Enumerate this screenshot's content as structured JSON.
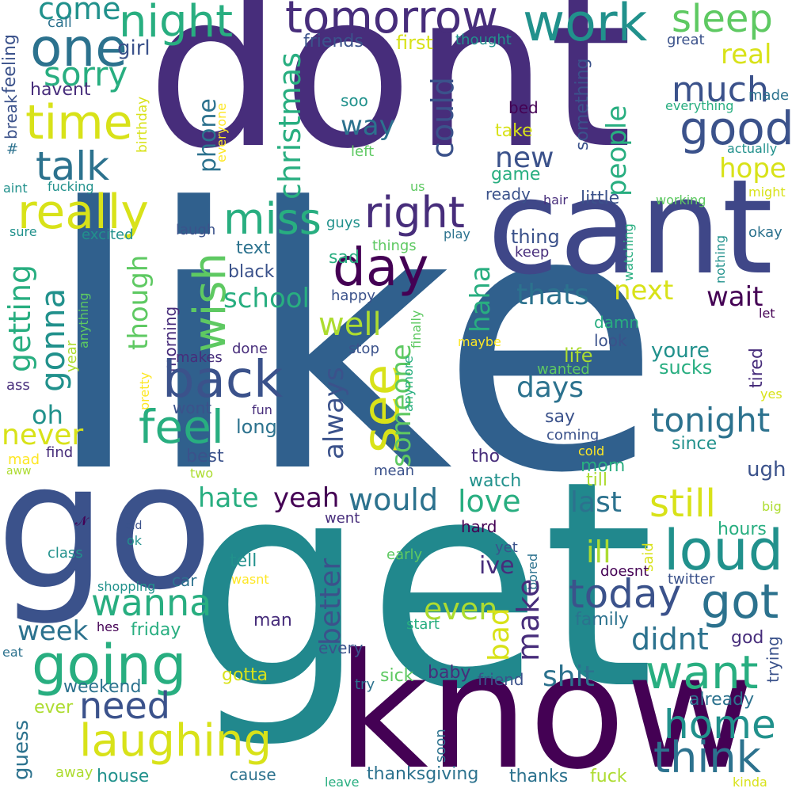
{
  "colors": {
    "background": "#ffffff",
    "palette": [
      "#440154",
      "#472d7b",
      "#3b528b",
      "#2c728e",
      "#21918c",
      "#28ae80",
      "#5ec962",
      "#addc30",
      "#d8e219",
      "#fde725"
    ]
  },
  "words": [
    {
      "text": "dont"
    },
    {
      "text": "like"
    },
    {
      "text": "get"
    },
    {
      "text": "cant"
    },
    {
      "text": "know"
    },
    {
      "text": "go"
    },
    {
      "text": "tomorrow"
    },
    {
      "text": "work"
    },
    {
      "text": "one"
    },
    {
      "text": "night"
    },
    {
      "text": "sleep"
    },
    {
      "text": "come"
    },
    {
      "text": "time"
    },
    {
      "text": "sorry"
    },
    {
      "text": "girl"
    },
    {
      "text": "friends"
    },
    {
      "text": "first"
    },
    {
      "text": "thought"
    },
    {
      "text": "great"
    },
    {
      "text": "real"
    },
    {
      "text": "call"
    },
    {
      "text": "feeling"
    },
    {
      "text": "break"
    },
    {
      "text": "#"
    },
    {
      "text": "havent"
    },
    {
      "text": "talk"
    },
    {
      "text": "christmas"
    },
    {
      "text": "phone"
    },
    {
      "text": "could"
    },
    {
      "text": "much"
    },
    {
      "text": "good"
    },
    {
      "text": "made"
    },
    {
      "text": "everything"
    },
    {
      "text": "actually"
    },
    {
      "text": "birthday"
    },
    {
      "text": "everyone"
    },
    {
      "text": "soo"
    },
    {
      "text": "way"
    },
    {
      "text": "bed"
    },
    {
      "text": "take"
    },
    {
      "text": "people"
    },
    {
      "text": "something"
    },
    {
      "text": "left"
    },
    {
      "text": "new"
    },
    {
      "text": "hope"
    },
    {
      "text": "game"
    },
    {
      "text": "really"
    },
    {
      "text": "miss"
    },
    {
      "text": "right"
    },
    {
      "text": "aint"
    },
    {
      "text": "fucking"
    },
    {
      "text": "us"
    },
    {
      "text": "ready"
    },
    {
      "text": "hair"
    },
    {
      "text": "little"
    },
    {
      "text": "working"
    },
    {
      "text": "might"
    },
    {
      "text": "sure"
    },
    {
      "text": "excited"
    },
    {
      "text": "laugh"
    },
    {
      "text": "guys"
    },
    {
      "text": "play"
    },
    {
      "text": "thing"
    },
    {
      "text": "okay"
    },
    {
      "text": "things"
    },
    {
      "text": "keep"
    },
    {
      "text": "day"
    },
    {
      "text": "wish"
    },
    {
      "text": "text"
    },
    {
      "text": "sad"
    },
    {
      "text": "black"
    },
    {
      "text": "nothing"
    },
    {
      "text": "watching"
    },
    {
      "text": "getting"
    },
    {
      "text": "gonna"
    },
    {
      "text": "though"
    },
    {
      "text": "school"
    },
    {
      "text": "happy"
    },
    {
      "text": "thats"
    },
    {
      "text": "next"
    },
    {
      "text": "wait"
    },
    {
      "text": "haha"
    },
    {
      "text": "let"
    },
    {
      "text": "anything"
    },
    {
      "text": "morning"
    },
    {
      "text": "well"
    },
    {
      "text": "finally"
    },
    {
      "text": "maybe"
    },
    {
      "text": "back"
    },
    {
      "text": "see"
    },
    {
      "text": "year"
    },
    {
      "text": "makes"
    },
    {
      "text": "done"
    },
    {
      "text": "stop"
    },
    {
      "text": "damn"
    },
    {
      "text": "look"
    },
    {
      "text": "tired"
    },
    {
      "text": "someone"
    },
    {
      "text": "life"
    },
    {
      "text": "youre"
    },
    {
      "text": "sucks"
    },
    {
      "text": "wanted"
    },
    {
      "text": "ass"
    },
    {
      "text": "always"
    },
    {
      "text": "days"
    },
    {
      "text": "oh"
    },
    {
      "text": "pretty"
    },
    {
      "text": "wont"
    },
    {
      "text": "anymore"
    },
    {
      "text": "yes"
    },
    {
      "text": "feel"
    },
    {
      "text": "fun"
    },
    {
      "text": "say"
    },
    {
      "text": "tonight"
    },
    {
      "text": "never"
    },
    {
      "text": "long"
    },
    {
      "text": "coming"
    },
    {
      "text": "since"
    },
    {
      "text": "mad"
    },
    {
      "text": "find"
    },
    {
      "text": "best"
    },
    {
      "text": "tho"
    },
    {
      "text": "cold"
    },
    {
      "text": "aww"
    },
    {
      "text": "two"
    },
    {
      "text": "mean"
    },
    {
      "text": "mom"
    },
    {
      "text": "ugh"
    },
    {
      "text": "watch"
    },
    {
      "text": "till"
    },
    {
      "text": "hate"
    },
    {
      "text": "yeah"
    },
    {
      "text": "would"
    },
    {
      "text": "love"
    },
    {
      "text": "last"
    },
    {
      "text": "still"
    },
    {
      "text": "big"
    },
    {
      "text": "𝓝"
    },
    {
      "text": "went"
    },
    {
      "text": "hard"
    },
    {
      "text": "hours"
    },
    {
      "text": "old"
    },
    {
      "text": "ok"
    },
    {
      "text": "class"
    },
    {
      "text": "loud"
    },
    {
      "text": "early"
    },
    {
      "text": "yet"
    },
    {
      "text": "ill"
    },
    {
      "text": "said"
    },
    {
      "text": "tell"
    },
    {
      "text": "ive"
    },
    {
      "text": "better"
    },
    {
      "text": "doesnt"
    },
    {
      "text": "twitter"
    },
    {
      "text": "shopping"
    },
    {
      "text": "car"
    },
    {
      "text": "wasnt"
    },
    {
      "text": "bored"
    },
    {
      "text": "wanna"
    },
    {
      "text": "today"
    },
    {
      "text": "got"
    },
    {
      "text": "even"
    },
    {
      "text": "man"
    },
    {
      "text": "start"
    },
    {
      "text": "family"
    },
    {
      "text": "week"
    },
    {
      "text": "friday"
    },
    {
      "text": "hes"
    },
    {
      "text": "bad"
    },
    {
      "text": "make"
    },
    {
      "text": "didnt"
    },
    {
      "text": "god"
    },
    {
      "text": "going"
    },
    {
      "text": "eat"
    },
    {
      "text": "every"
    },
    {
      "text": "want"
    },
    {
      "text": "trying"
    },
    {
      "text": "weekend"
    },
    {
      "text": "gotta"
    },
    {
      "text": "sick"
    },
    {
      "text": "baby"
    },
    {
      "text": "friend"
    },
    {
      "text": "shit"
    },
    {
      "text": "need"
    },
    {
      "text": "try"
    },
    {
      "text": "already"
    },
    {
      "text": "ever"
    },
    {
      "text": "guess"
    },
    {
      "text": "home"
    },
    {
      "text": "soon"
    },
    {
      "text": "laughing"
    },
    {
      "text": "think"
    },
    {
      "text": "away"
    },
    {
      "text": "house"
    },
    {
      "text": "cause"
    },
    {
      "text": "thanksgiving"
    },
    {
      "text": "thanks"
    },
    {
      "text": "fuck"
    },
    {
      "text": "leave"
    },
    {
      "text": "kinda"
    }
  ]
}
